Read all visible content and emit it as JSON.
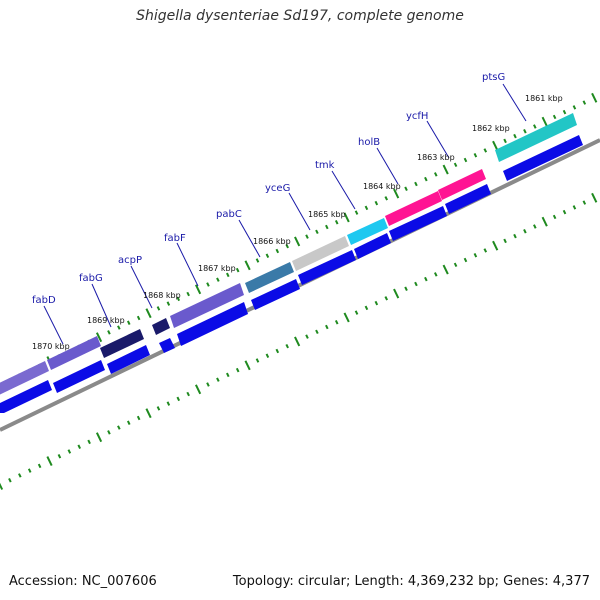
{
  "title": "Shigella dysenteriae Sd197, complete genome",
  "accession": "Accession: NC_007606",
  "summary": "Topology: circular; Length: 4,369,232 bp; Genes: 4,377",
  "colors": {
    "ring": "#888888",
    "ticks": "#1f8a1f",
    "gene_arrow": "#0b0be6",
    "label": "#1a1aa8"
  },
  "genes": [
    {
      "name": "ptsG",
      "color": "#22c6c6"
    },
    {
      "name": "ycfH",
      "color": "#ff1493"
    },
    {
      "name": "holB",
      "color": "#ff1493"
    },
    {
      "name": "tmk",
      "color": "#1ec8f0"
    },
    {
      "name": "yceG",
      "color": "#c8c8c8"
    },
    {
      "name": "pabC",
      "color": "#3a7aa8"
    },
    {
      "name": "fabF",
      "color": "#6a5acd"
    },
    {
      "name": "acpP",
      "color": "#1a1a6a"
    },
    {
      "name": "fabG",
      "color": "#6a5acd"
    },
    {
      "name": "fabD",
      "color": "#7a6ad0"
    }
  ],
  "kbp_labels": [
    "1861 kbp",
    "1862 kbp",
    "1863 kbp",
    "1864 kbp",
    "1865 kbp",
    "1866 kbp",
    "1867 kbp",
    "1868 kbp",
    "1869 kbp",
    "1870 kbp"
  ]
}
